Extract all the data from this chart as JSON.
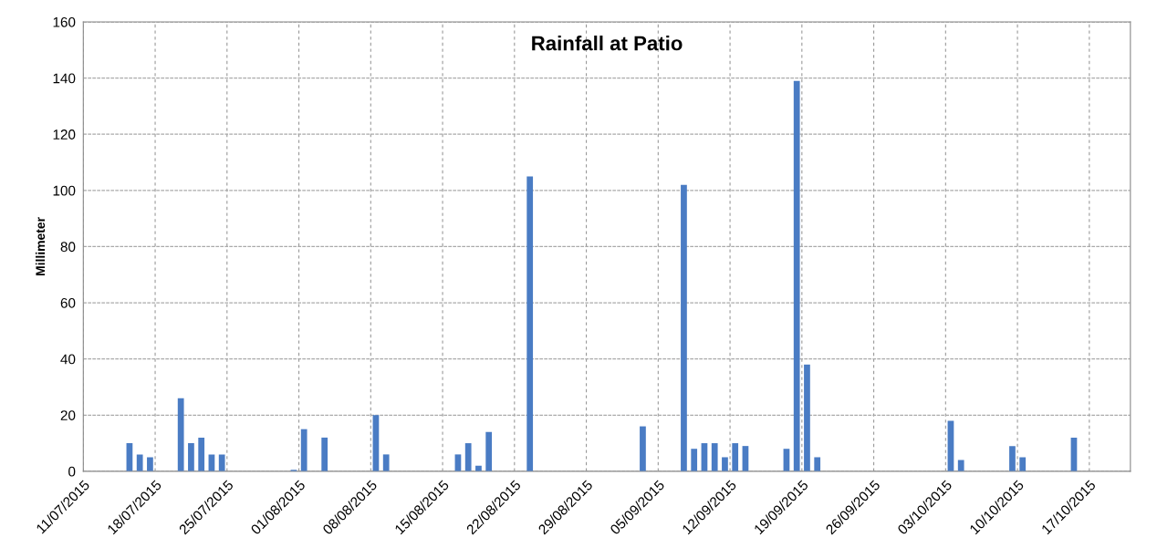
{
  "chart_data": {
    "type": "bar",
    "title": "Rainfall at Patio",
    "ylabel": "Millimeter",
    "x": [
      "2015-07-15T12:00",
      "2015-07-16T12:00",
      "2015-07-17T12:00",
      "2015-07-20T12:00",
      "2015-07-21T12:00",
      "2015-07-22T12:00",
      "2015-07-23T12:00",
      "2015-07-24T12:00",
      "2015-07-31T12:00",
      "2015-08-01T12:00",
      "2015-08-03T12:00",
      "2015-08-08T12:00",
      "2015-08-09T12:00",
      "2015-08-16T12:00",
      "2015-08-17T12:00",
      "2015-08-18T12:00",
      "2015-08-19T12:00",
      "2015-08-23T12:00",
      "2015-09-03T12:00",
      "2015-09-07T12:00",
      "2015-09-08T12:00",
      "2015-09-09T12:00",
      "2015-09-10T12:00",
      "2015-09-11T12:00",
      "2015-09-12T12:00",
      "2015-09-13T12:00",
      "2015-09-17T12:00",
      "2015-09-18T12:00",
      "2015-09-19T12:00",
      "2015-09-20T12:00",
      "2015-10-03T12:00",
      "2015-10-04T12:00",
      "2015-10-09T12:00",
      "2015-10-10T12:00",
      "2015-10-15T12:00"
    ],
    "values": [
      10,
      6,
      5,
      26,
      10,
      12,
      6,
      6,
      0.5,
      15,
      12,
      20,
      6,
      6,
      10,
      2,
      14,
      105,
      16,
      102,
      8,
      10,
      10,
      5,
      10,
      9,
      8,
      139,
      38,
      5,
      18,
      4,
      9,
      5,
      12
    ],
    "color": "#4a7cc4",
    "xlim": [
      "2015-07-11",
      "2015-10-21"
    ],
    "xticks": [
      {
        "value": "2015-07-11",
        "label": "11/07/2015"
      },
      {
        "value": "2015-07-18",
        "label": "18/07/2015"
      },
      {
        "value": "2015-07-25",
        "label": "25/07/2015"
      },
      {
        "value": "2015-08-01",
        "label": "01/08/2015"
      },
      {
        "value": "2015-08-08",
        "label": "08/08/2015"
      },
      {
        "value": "2015-08-15",
        "label": "15/08/2015"
      },
      {
        "value": "2015-08-22",
        "label": "22/08/2015"
      },
      {
        "value": "2015-08-29",
        "label": "29/08/2015"
      },
      {
        "value": "2015-09-05",
        "label": "05/09/2015"
      },
      {
        "value": "2015-09-12",
        "label": "12/09/2015"
      },
      {
        "value": "2015-09-19",
        "label": "19/09/2015"
      },
      {
        "value": "2015-09-26",
        "label": "26/09/2015"
      },
      {
        "value": "2015-10-03",
        "label": "03/10/2015"
      },
      {
        "value": "2015-10-10",
        "label": "10/10/2015"
      },
      {
        "value": "2015-10-17",
        "label": "17/10/2015"
      }
    ],
    "ylim": [
      0,
      160
    ],
    "yticks": [
      0,
      20,
      40,
      60,
      80,
      100,
      120,
      140,
      160
    ],
    "grid": true
  }
}
